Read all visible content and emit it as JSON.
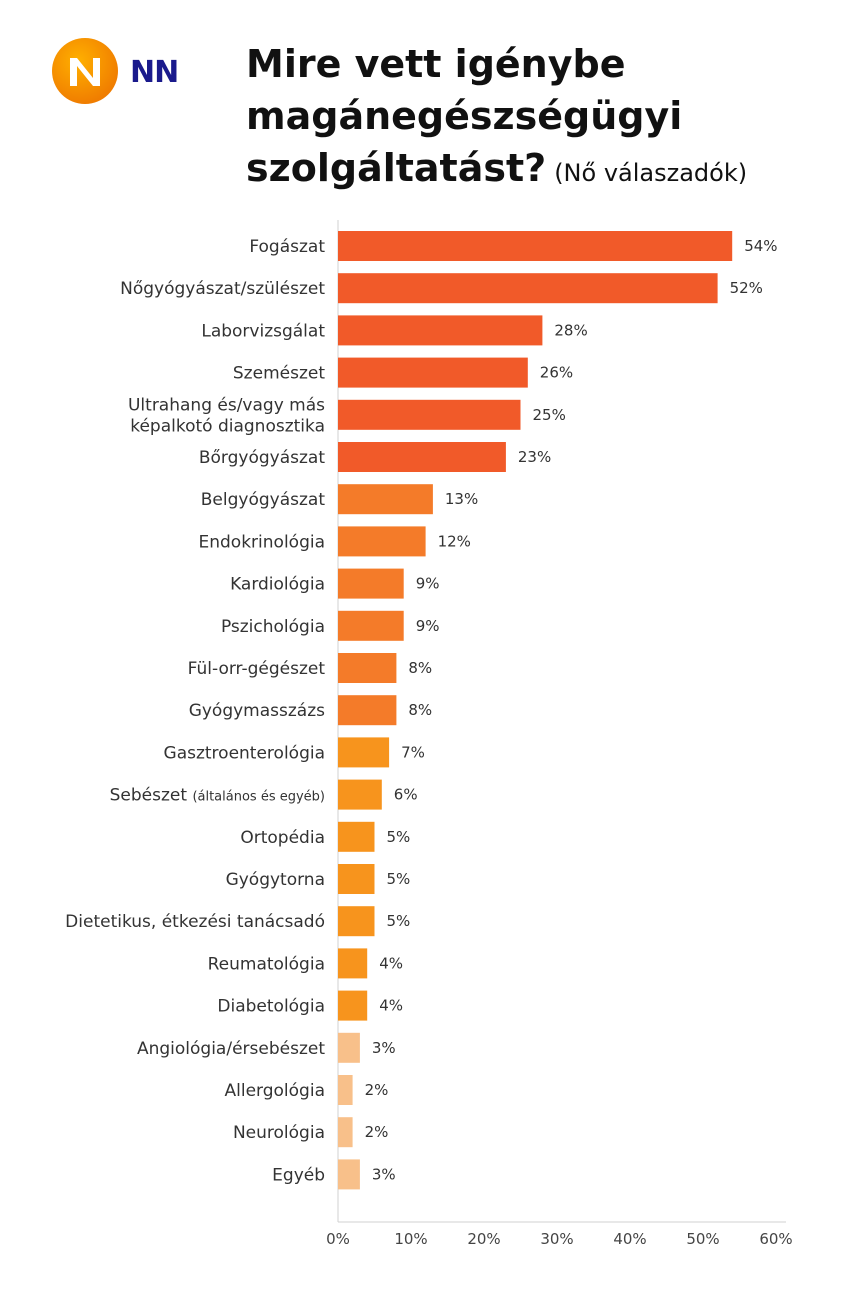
{
  "brand": {
    "logo_text": "NN",
    "colors": {
      "orange": "#f07d00",
      "light_orange": "#f7a21b",
      "navy": "#1a1a8c"
    }
  },
  "header": {
    "title_lines": [
      "Mire vett igénybe",
      "magánegészségügyi",
      "szolgáltatást?"
    ],
    "subtitle": "(Nő válaszadók)"
  },
  "chart_data": {
    "type": "bar",
    "orientation": "horizontal",
    "title": "Mire vett igénybe magánegészségügyi szolgáltatást? (Nő válaszadók)",
    "categories": [
      "Fogászat",
      "Nőgyógyászat/szülészet",
      "Laborvizsgálat",
      "Szemészet",
      "Ultrahang és/vagy más|képalkotó diagnosztika",
      "Bőrgyógyászat",
      "Belgyógyászat",
      "Endokrinológia",
      "Kardiológia",
      "Pszichológia",
      "Fül-orr-gégészet",
      "Gyógymasszázs",
      "Gasztroenterológia",
      "Sebészet",
      "Ortopédia",
      "Gyógytorna",
      "Dietetikus, étkezési tanácsadó",
      "Reumatológia",
      "Diabetológia",
      "Angiológia/érsebészet",
      "Allergológia",
      "Neurológia",
      "Egyéb"
    ],
    "category_notes": {
      "Sebészet": "(általános és egyéb)"
    },
    "values": [
      54,
      52,
      28,
      26,
      25,
      23,
      13,
      12,
      9,
      9,
      8,
      8,
      7,
      6,
      5,
      5,
      5,
      4,
      4,
      3,
      2,
      2,
      3
    ],
    "value_labels": [
      "54%",
      "52%",
      "28%",
      "26%",
      "25%",
      "23%",
      "13%",
      "12%",
      "9%",
      "9%",
      "8%",
      "8%",
      "7%",
      "6%",
      "5%",
      "5%",
      "5%",
      "4%",
      "4%",
      "3%",
      "2%",
      "2%",
      "3%"
    ],
    "bar_colors": [
      "#f15a29",
      "#f15a29",
      "#f15a29",
      "#f15a29",
      "#f15a29",
      "#f15a29",
      "#f47b29",
      "#f47b29",
      "#f47b29",
      "#f47b29",
      "#f47b29",
      "#f47b29",
      "#f7941d",
      "#f7941d",
      "#f7941d",
      "#f7941d",
      "#f7941d",
      "#f7941d",
      "#f7941d",
      "#f8c08a",
      "#f8c08a",
      "#f8c08a",
      "#f8c08a"
    ],
    "xlim": [
      0,
      60
    ],
    "xticks": [
      0,
      10,
      20,
      30,
      40,
      50,
      60
    ],
    "xtick_labels": [
      "0%",
      "10%",
      "20%",
      "30%",
      "40%",
      "50%",
      "60%"
    ],
    "grid": false,
    "legend": false
  }
}
